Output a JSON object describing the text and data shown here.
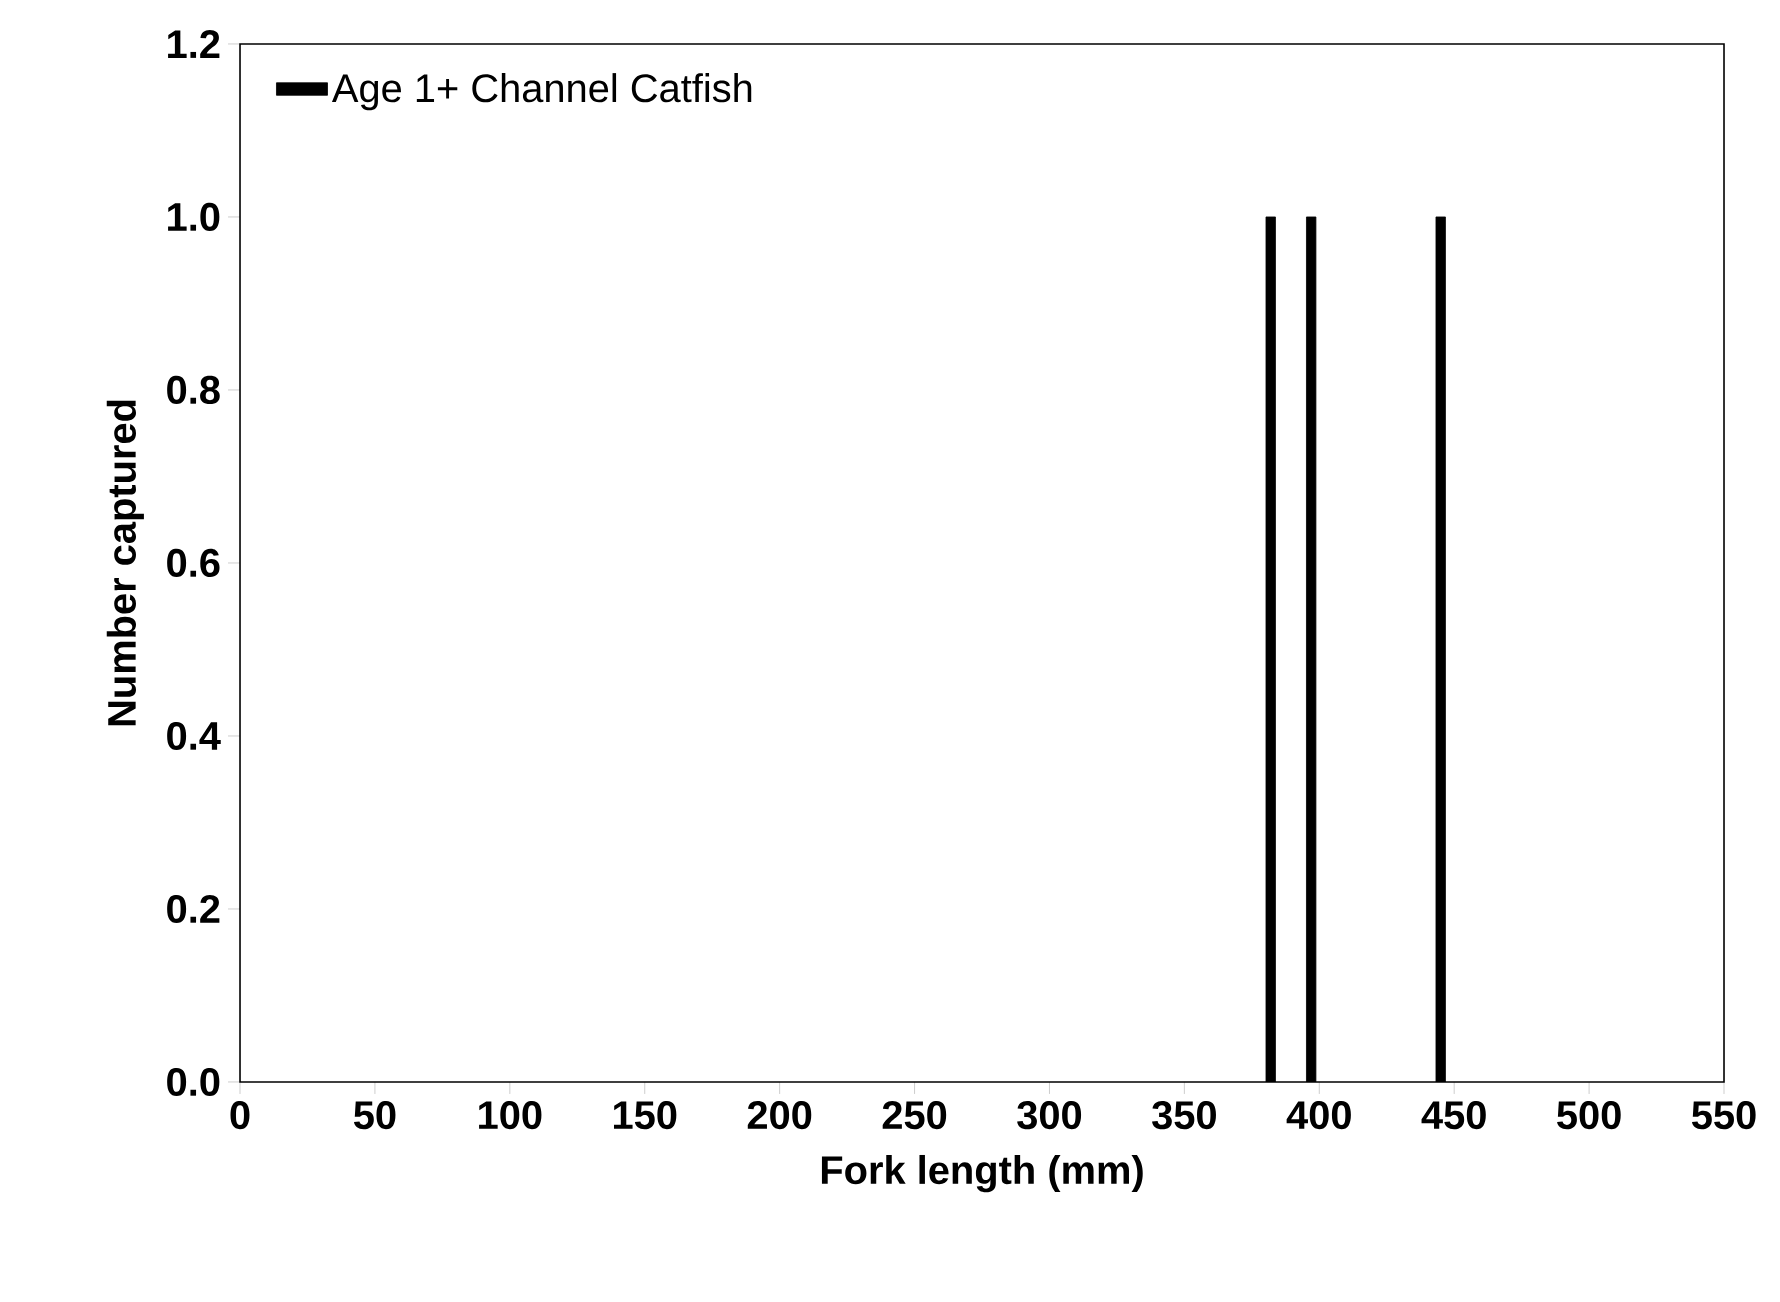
{
  "chart_data": {
    "type": "bar",
    "xlabel": "Fork length (mm)",
    "ylabel": "Number captured",
    "x": [
      382,
      397,
      445
    ],
    "series": [
      {
        "name": "Age 1+ Channel Catfish",
        "color": "#000000",
        "values": [
          1,
          1,
          1
        ]
      }
    ],
    "xlim": [
      0,
      550
    ],
    "xticks": [
      0,
      50,
      100,
      150,
      200,
      250,
      300,
      350,
      400,
      450,
      500,
      550
    ],
    "ylim": [
      0,
      1.2
    ],
    "yticks": [
      {
        "value": 0,
        "label": "0.0"
      },
      {
        "value": 0.2,
        "label": "0.2"
      },
      {
        "value": 0.4,
        "label": "0.4"
      },
      {
        "value": 0.6,
        "label": "0.6"
      },
      {
        "value": 0.8,
        "label": "0.8"
      },
      {
        "value": 1.0,
        "label": "1.0"
      },
      {
        "value": 1.2,
        "label": "1.2"
      }
    ],
    "grid": false,
    "legend": "top left"
  }
}
